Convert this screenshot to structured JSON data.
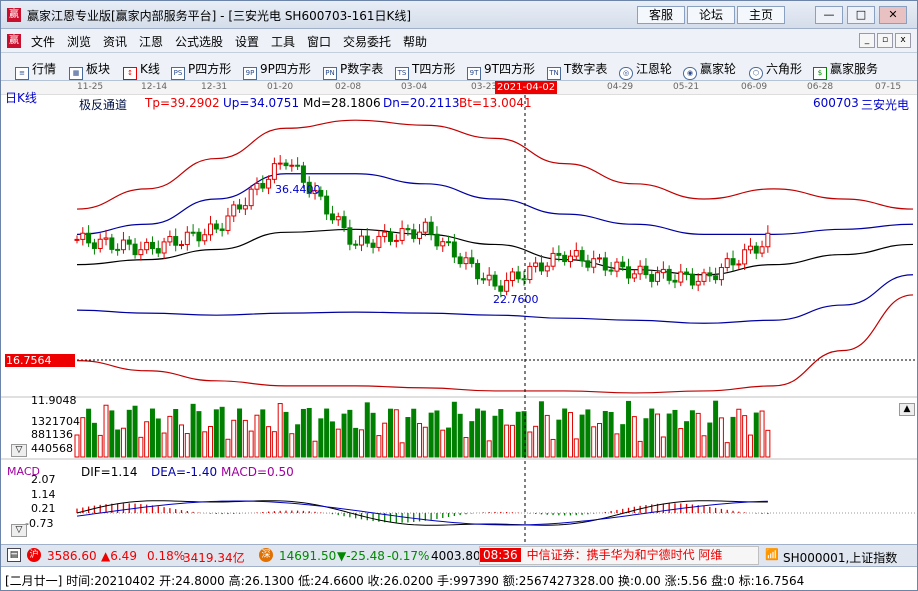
{
  "window": {
    "title": "赢家江恩专业版[赢家内部服务平台] - [三安光电  SH600703-161日K线]",
    "buttons": [
      "客服",
      "论坛",
      "主页"
    ]
  },
  "menu": [
    "文件",
    "浏览",
    "资讯",
    "江恩",
    "公式选股",
    "设置",
    "工具",
    "窗口",
    "交易委托",
    "帮助"
  ],
  "toolbar": [
    "行情",
    "板块",
    "K线",
    "P四方形",
    "9P四方形",
    "P数字表",
    "T四方形",
    "9T四方形",
    "T数字表",
    "江恩轮",
    "赢家轮",
    "六角形",
    "赢家服务"
  ],
  "chart": {
    "period_label": "日K线",
    "indicator_name": "极反通道",
    "params": {
      "tp": "Tp=39.2902",
      "up": "Up=34.0751",
      "md": "Md=28.1806",
      "dn": "Dn=20.2113",
      "bt": "Bt=13.0041"
    },
    "stock_code": "600703",
    "stock_name": "三安光电",
    "dates": [
      "11-25",
      "12-14",
      "12-31",
      "01-20",
      "02-08",
      "03-04",
      "03-23",
      "2021-04-02",
      "04-29",
      "05-21",
      "06-09",
      "06-28",
      "07-15"
    ],
    "selected_date": "2021-04-02",
    "high_annotation": "36.4400",
    "low_annotation": "22.7600",
    "current_price_tag": "16.7564",
    "volume_axis": [
      "11.9048",
      "1321704",
      "881136",
      "440568"
    ],
    "macd": {
      "name": "MACD",
      "dif": "DIF=1.14",
      "dea": "DEA=-1.40",
      "macd": "MACD=0.50",
      "axis": [
        "2.07",
        "1.14",
        "0.21",
        "-0.73"
      ]
    }
  },
  "status": {
    "sh_index": "3586.60",
    "sh_change": "▲6.49",
    "sh_pct": "0.18%",
    "sh_amount": "3419.34亿",
    "sz_index": "14691.50",
    "sz_change": "▼-25.48",
    "sz_pct": "-0.17%",
    "sz_amount": "4003.80",
    "time": "08:36",
    "news": "中信证券：携手华为和宁德时代 阿维",
    "ticker": "SH000001,上证指数"
  },
  "info_line": "[二月廿一] 时间:20210402 开:24.8000 高:26.1300 低:24.6600 收:26.0200 手:997390 额:2567427328.00 换:0.00 涨:5.56 盘:0 标:16.7564",
  "colors": {
    "up": "#e00000",
    "down": "#008000",
    "band_outer": "#c00000",
    "band_inner": "#0000a0",
    "mid": "#000000"
  },
  "chart_data": {
    "type": "candlestick",
    "x": [
      "11-25",
      "12-14",
      "12-31",
      "01-20",
      "02-08",
      "03-04",
      "03-23",
      "04-02",
      "04-29",
      "05-21",
      "06-09",
      "06-28",
      "07-15"
    ],
    "close_approx": [
      27.5,
      26.5,
      28.5,
      35.5,
      27.0,
      28.5,
      22.8,
      26.0,
      24.2,
      23.5,
      27.8,
      null,
      null
    ],
    "channel_series": [
      {
        "name": "Tp",
        "values": [
          30.5,
          32.5,
          35.5,
          38.5,
          39.3,
          38.8,
          37.5,
          35.0,
          33.0,
          31.5,
          32.5,
          31.5,
          30.5
        ]
      },
      {
        "name": "Up",
        "values": [
          28.0,
          29.0,
          31.5,
          34.0,
          34.0,
          33.0,
          31.5,
          30.0,
          29.0,
          28.0,
          28.0,
          28.5,
          29.0
        ]
      },
      {
        "name": "Md",
        "values": [
          25.0,
          25.5,
          26.5,
          28.2,
          28.5,
          28.0,
          27.0,
          25.5,
          24.5,
          24.0,
          25.0,
          26.0,
          27.0
        ]
      },
      {
        "name": "Dn",
        "values": [
          20.5,
          20.2,
          20.0,
          20.2,
          20.3,
          20.2,
          20.0,
          19.7,
          19.5,
          19.2,
          19.5,
          21.0,
          24.0
        ]
      },
      {
        "name": "Bt",
        "values": [
          15.5,
          14.5,
          13.5,
          13.0,
          13.0,
          12.8,
          12.5,
          12.5,
          12.3,
          12.5,
          13.0,
          16.5,
          22.0
        ]
      }
    ],
    "ylim": [
      11.9,
      41.0
    ]
  }
}
